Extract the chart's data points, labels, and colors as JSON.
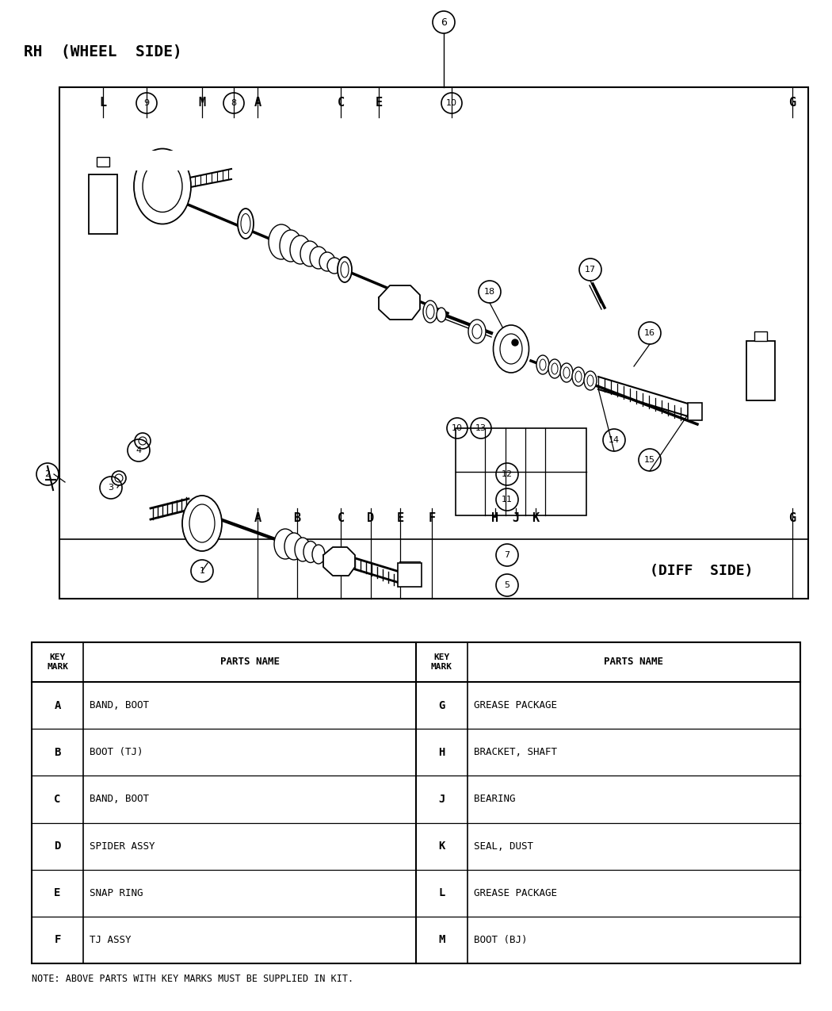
{
  "bg_color": "#ffffff",
  "rh_label": "RH  (WHEEL  SIDE)",
  "diff_label": "(DIFF  SIDE)",
  "note": "NOTE: ABOVE PARTS WITH KEY MARKS MUST BE SUPPLIED IN KIT.",
  "table_rows_left": [
    [
      "A",
      "BAND, BOOT"
    ],
    [
      "B",
      "BOOT (TJ)"
    ],
    [
      "C",
      "BAND, BOOT"
    ],
    [
      "D",
      "SPIDER ASSY"
    ],
    [
      "E",
      "SNAP RING"
    ],
    [
      "F",
      "TJ ASSY"
    ]
  ],
  "table_rows_right": [
    [
      "G",
      "GREASE PACKAGE"
    ],
    [
      "H",
      "BRACKET, SHAFT"
    ],
    [
      "J",
      "BEARING"
    ],
    [
      "K",
      "SEAL, DUST"
    ],
    [
      "L",
      "GREASE PACKAGE"
    ],
    [
      "M",
      "BOOT (BJ)"
    ]
  ]
}
